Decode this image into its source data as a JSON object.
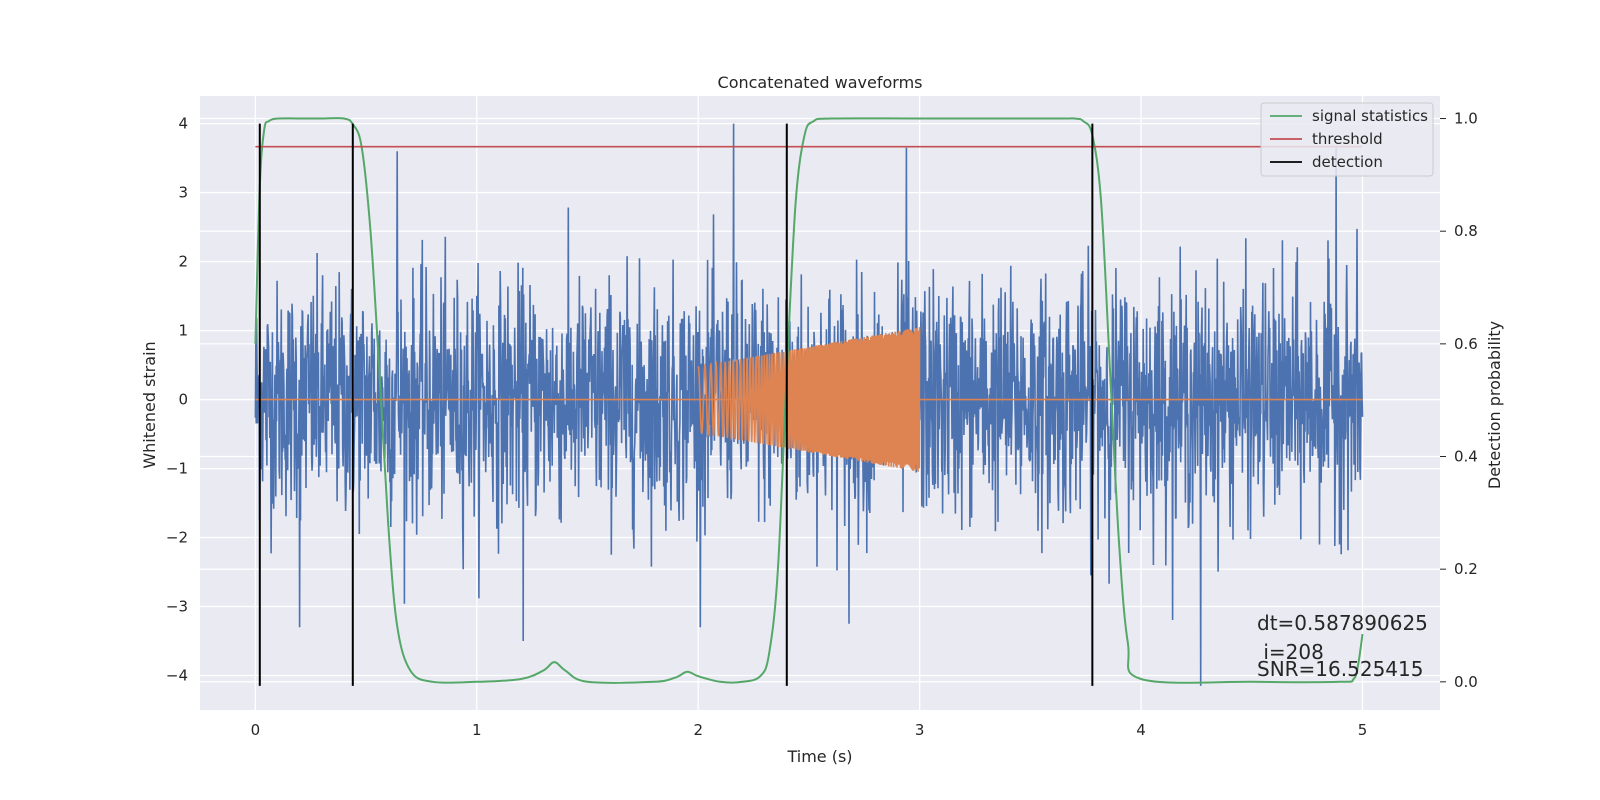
{
  "chart_data": {
    "type": "line",
    "title": "Concatenated waveforms",
    "xlabel": "Time (s)",
    "ylabel": "Whitened strain",
    "y2label": "Detection probability",
    "xlim": [
      -0.25,
      5.35
    ],
    "ylim": [
      -4.5,
      4.4
    ],
    "y2lim": [
      -0.05,
      1.04
    ],
    "xticks": [
      0,
      1,
      2,
      3,
      4,
      5
    ],
    "xtick_labels": [
      "0",
      "1",
      "2",
      "3",
      "4",
      "5"
    ],
    "yticks": [
      4,
      3,
      2,
      1,
      0,
      -1,
      -2,
      -3,
      -4
    ],
    "ytick_labels": [
      "4",
      "3",
      "2",
      "1",
      "0",
      "−1",
      "−2",
      "−3",
      "−4"
    ],
    "y2ticks": [
      1.0,
      0.8,
      0.6,
      0.4,
      0.2,
      0.0
    ],
    "y2tick_labels": [
      "1.0",
      "0.8",
      "0.6",
      "0.4",
      "0.2",
      "0.0"
    ],
    "grid": true,
    "legend_position": "top-right",
    "colors": {
      "noise": "#4c72b0",
      "template": "#dd8452",
      "signal_statistics": "#55a868",
      "threshold": "#c44e52",
      "detection": "#000000",
      "background": "#eaeaf2"
    },
    "series": [
      {
        "name": "whitened strain",
        "axis": "left",
        "kind": "noise",
        "x_range": [
          0,
          5
        ],
        "amplitude_sd": 0.85,
        "peaks": [
          {
            "x": 0.64,
            "y": 3.6
          },
          {
            "x": 2.16,
            "y": 4.0
          },
          {
            "x": 2.94,
            "y": 3.65
          },
          {
            "x": 4.88,
            "y": 3.65
          },
          {
            "x": 4.27,
            "y": -4.15
          },
          {
            "x": 1.21,
            "y": -3.5
          },
          {
            "x": 0.2,
            "y": -3.3
          },
          {
            "x": 2.68,
            "y": -3.25
          }
        ]
      },
      {
        "name": "template",
        "axis": "left",
        "kind": "chirp",
        "x_range": [
          2.0,
          3.0
        ],
        "amplitude_start": 0.48,
        "amplitude_end": 1.05
      },
      {
        "name": "signal statistics",
        "axis": "right",
        "x": [
          0,
          0.02,
          0.04,
          0.06,
          0.1,
          0.2,
          0.3,
          0.4,
          0.44,
          0.48,
          0.52,
          0.56,
          0.6,
          0.64,
          0.7,
          0.8,
          1.0,
          1.2,
          1.3,
          1.35,
          1.4,
          1.5,
          1.8,
          1.9,
          1.95,
          2.0,
          2.1,
          2.2,
          2.28,
          2.32,
          2.36,
          2.4,
          2.44,
          2.48,
          2.52,
          2.6,
          3.0,
          3.6,
          3.7,
          3.74,
          3.78,
          3.82,
          3.86,
          3.9,
          3.94,
          4.0,
          4.5,
          4.9,
          4.96,
          4.98,
          5.0
        ],
        "y": [
          0.6,
          0.88,
          0.98,
          0.995,
          1.0,
          1.0,
          1.0,
          1.0,
          0.99,
          0.95,
          0.8,
          0.55,
          0.28,
          0.1,
          0.02,
          0.0,
          0.0,
          0.005,
          0.02,
          0.035,
          0.02,
          0.0,
          0.0,
          0.008,
          0.018,
          0.01,
          0.0,
          0.0,
          0.01,
          0.05,
          0.2,
          0.55,
          0.85,
          0.97,
          0.995,
          1.0,
          1.0,
          1.0,
          1.0,
          0.995,
          0.97,
          0.85,
          0.55,
          0.25,
          0.07,
          0.005,
          0.0,
          0.0,
          0.005,
          0.03,
          0.085
        ]
      },
      {
        "name": "threshold",
        "axis": "right",
        "x": [
          0,
          5
        ],
        "y": [
          0.95,
          0.95
        ]
      },
      {
        "name": "detection",
        "axis": "left",
        "vlines": [
          0.02,
          0.44,
          2.4,
          3.78
        ],
        "ymin": -4.15,
        "ymax": 4.0
      }
    ],
    "legend": [
      "signal statistics",
      "threshold",
      "detection"
    ],
    "annotations": {
      "dt": "dt=0.587890625",
      "i": " i=208",
      "snr": "SNR=16.525415"
    }
  }
}
